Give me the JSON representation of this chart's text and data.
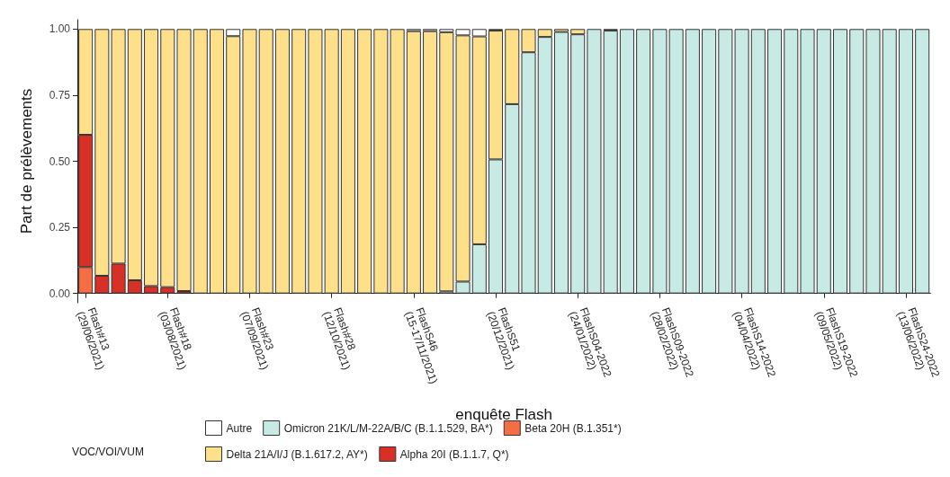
{
  "chart_data": {
    "type": "bar",
    "stacked": true,
    "xlabel": "enquête Flash",
    "ylabel": "Part de prélèvements",
    "legend_title": "VOC/VOI/VUM",
    "legend": "bottom",
    "grid": false,
    "categories": [
      "Flash#13\n(29/06/2021)",
      null,
      null,
      null,
      null,
      "Flash#18\n(03/08/2021)",
      null,
      null,
      null,
      null,
      "Flash#23\n(07/09/2021)",
      null,
      null,
      null,
      null,
      "Flash#28\n(12/10/2021)",
      null,
      null,
      null,
      null,
      "FlashS46\n(15-17/11/2021)",
      null,
      null,
      null,
      null,
      "FlashS51\n(20/12/2021)",
      null,
      null,
      null,
      null,
      "FlashS04-2022\n(24/01/2022)",
      null,
      null,
      null,
      null,
      "FlashS09-2022\n(28/02/2022)",
      null,
      null,
      null,
      null,
      "FlashS14-2022\n(04/04/2022)",
      null,
      null,
      null,
      null,
      "FlashS19-2022\n(09/05/2022)",
      null,
      null,
      null,
      null,
      "FlashS24-2022\n(13/06/2022)",
      null
    ],
    "ylim": [
      -0.035,
      1.035
    ],
    "yticks": [
      {
        "value": 0,
        "label": "0.00"
      },
      {
        "value": 0.25,
        "label": "0.25"
      },
      {
        "value": 0.5,
        "label": "0.50"
      },
      {
        "value": 0.75,
        "label": "0.75"
      },
      {
        "value": 1,
        "label": "1.00"
      }
    ],
    "series": [
      {
        "name": "Beta 20H (B.1.351*)",
        "color": "#f46d43",
        "values": [
          0.1,
          null,
          null,
          null,
          null,
          null,
          null,
          null,
          null,
          null,
          null,
          null,
          null,
          null,
          null,
          null,
          null,
          null,
          null,
          null,
          null,
          null,
          null,
          null,
          null,
          null,
          null,
          null,
          null,
          null,
          null,
          null,
          null,
          null,
          null,
          null,
          null,
          null,
          null,
          null,
          null,
          null,
          null,
          null,
          null,
          null,
          null,
          null,
          null,
          null,
          null,
          null
        ]
      },
      {
        "name": "Alpha 20I (B.1.1.7, Q*)",
        "color": "#d73027",
        "values": [
          0.5,
          0.067,
          0.113,
          0.05,
          0.028,
          0.024,
          0.009,
          null,
          null,
          null,
          null,
          null,
          null,
          null,
          null,
          null,
          null,
          null,
          null,
          null,
          null,
          null,
          null,
          null,
          null,
          null,
          null,
          null,
          null,
          null,
          null,
          null,
          null,
          null,
          null,
          null,
          null,
          null,
          null,
          null,
          null,
          null,
          null,
          null,
          null,
          null,
          null,
          null,
          null,
          null,
          null,
          null
        ]
      },
      {
        "name": "Omicron 21K/L/M-22A/B/C (B.1.1.529, BA*)",
        "color": "#c7eae5",
        "values": [
          null,
          null,
          null,
          null,
          null,
          null,
          null,
          null,
          null,
          null,
          null,
          null,
          null,
          null,
          null,
          null,
          null,
          null,
          null,
          null,
          null,
          null,
          0.008,
          0.045,
          0.186,
          0.507,
          0.716,
          0.912,
          0.97,
          0.989,
          0.98,
          1,
          0.994,
          1,
          1,
          1,
          1,
          1,
          1,
          1,
          1,
          1,
          1,
          1,
          1,
          1,
          1,
          1,
          1,
          1,
          1,
          1
        ]
      },
      {
        "name": "Delta 21A/I/J (B.1.617.2, AY*)",
        "color": "#fee08b",
        "values": [
          0.4,
          0.933,
          0.887,
          0.95,
          0.972,
          0.976,
          0.991,
          1,
          1,
          0.973,
          1,
          1,
          1,
          1,
          1,
          1,
          1,
          1,
          1,
          1,
          0.992,
          0.992,
          0.98,
          0.931,
          0.786,
          0.487,
          0.284,
          0.088,
          0.03,
          0.011,
          0.02,
          null,
          0.006,
          null,
          null,
          null,
          null,
          null,
          null,
          null,
          null,
          null,
          null,
          null,
          null,
          null,
          null,
          null,
          null,
          null,
          null,
          null
        ]
      },
      {
        "name": "Autre",
        "color": "#ffffff",
        "values": [
          null,
          null,
          null,
          null,
          null,
          null,
          null,
          null,
          null,
          0.027,
          null,
          null,
          null,
          null,
          null,
          null,
          null,
          null,
          null,
          null,
          0.008,
          0.008,
          0.012,
          0.024,
          0.028,
          0.006,
          null,
          null,
          null,
          null,
          null,
          null,
          null,
          null,
          null,
          null,
          null,
          null,
          null,
          null,
          null,
          null,
          null,
          null,
          null,
          null,
          null,
          null,
          null,
          null,
          null,
          null
        ]
      }
    ]
  }
}
